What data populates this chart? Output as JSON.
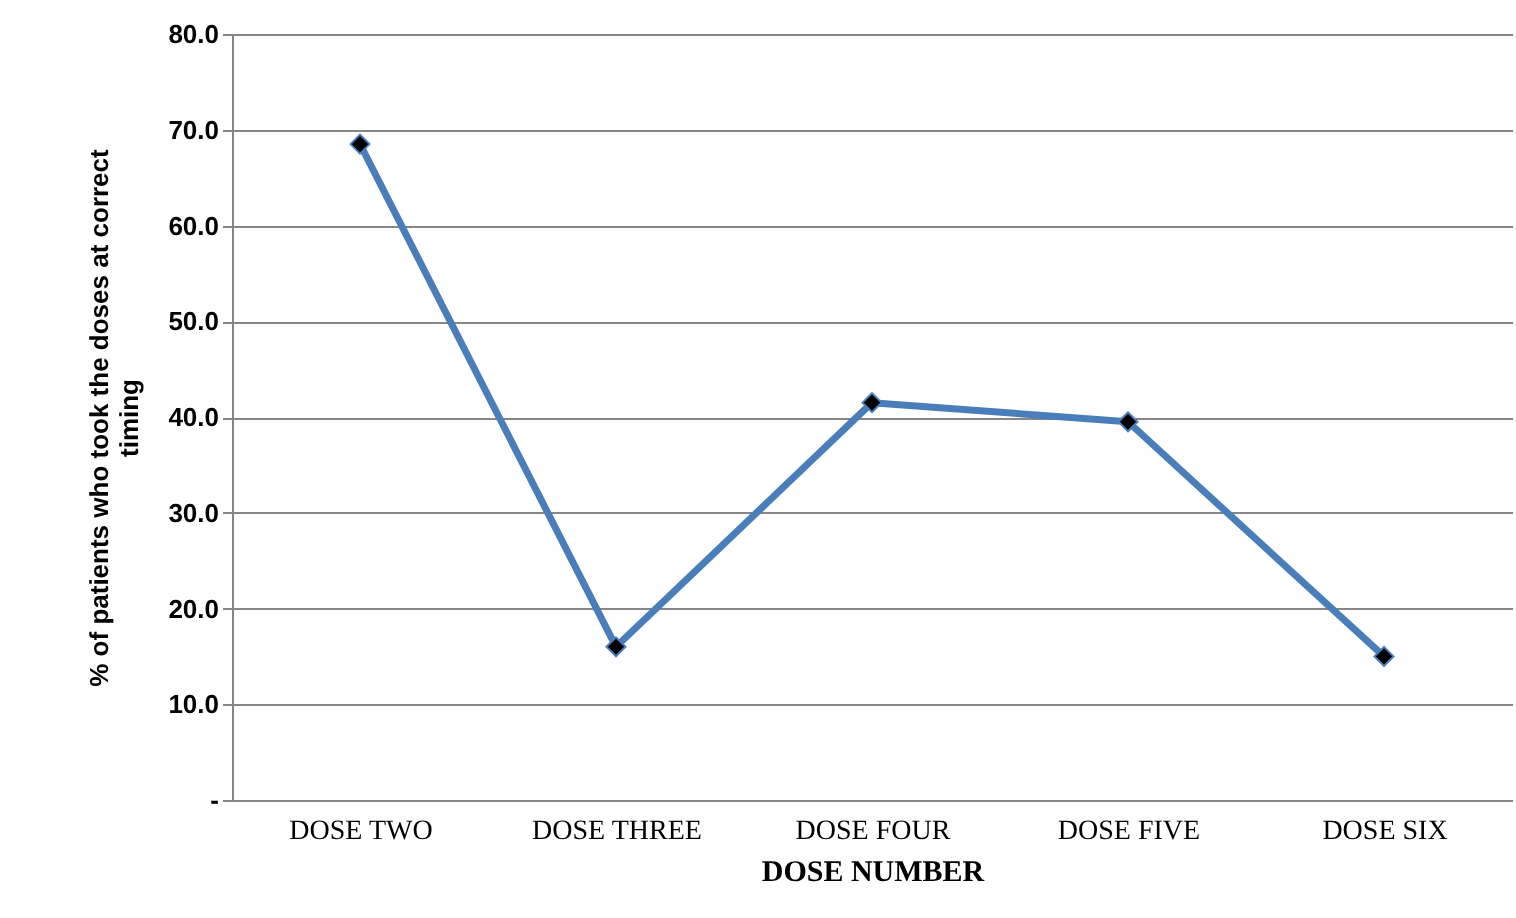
{
  "chart_data": {
    "type": "line",
    "xlabel": "DOSE NUMBER",
    "ylabel": "% of patients who took the doses at correct timing",
    "categories": [
      "DOSE TWO",
      "DOSE THREE",
      "DOSE FOUR",
      "DOSE FIVE",
      "DOSE SIX"
    ],
    "series": [
      {
        "color": "#4a7ebb",
        "values": [
          68.5,
          16.0,
          41.5,
          39.5,
          15.0
        ]
      }
    ],
    "ylim": [
      0,
      80
    ],
    "yticks": [
      {
        "value": 0,
        "label": "-"
      },
      {
        "value": 10,
        "label": "10.0"
      },
      {
        "value": 20,
        "label": "20.0"
      },
      {
        "value": 30,
        "label": "30.0"
      },
      {
        "value": 40,
        "label": "40.0"
      },
      {
        "value": 50,
        "label": "50.0"
      },
      {
        "value": 60,
        "label": "60.0"
      },
      {
        "value": 70,
        "label": "70.0"
      },
      {
        "value": 80,
        "label": "80.0"
      }
    ],
    "grid": "y",
    "marker": "diamond",
    "line_style": "solid"
  }
}
